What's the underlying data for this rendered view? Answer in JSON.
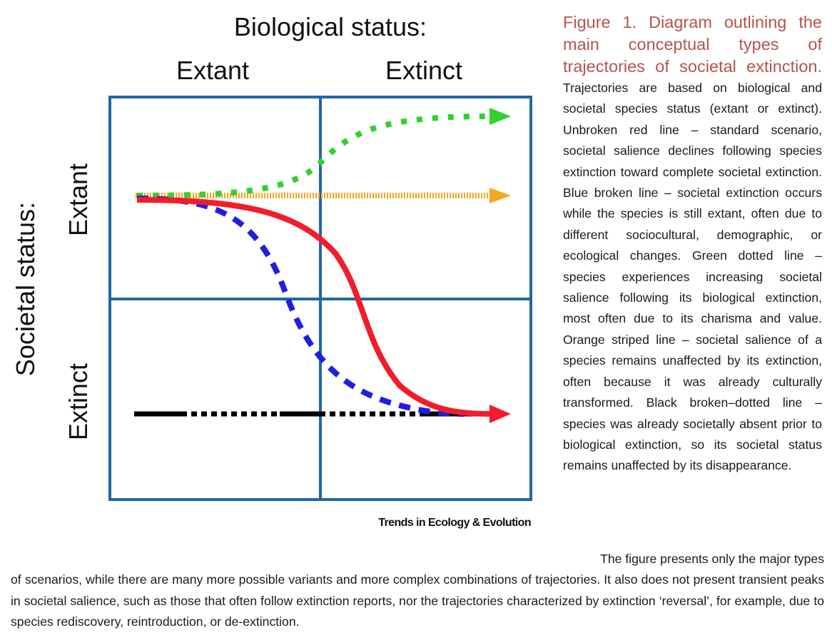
{
  "diagram": {
    "top_title": "Biological status:",
    "top_columns": [
      "Extant",
      "Extinct"
    ],
    "side_title": "Societal status:",
    "side_rows": [
      "Extant",
      "Extinct"
    ],
    "colors": {
      "grid": "#1f67a6",
      "red_line": "#f21c2a",
      "blue_line": "#1f1fe0",
      "green_line": "#2fd12f",
      "orange_line": "#f5a623",
      "black_line": "#000000"
    },
    "source": "Trends in Ecology & Evolution"
  },
  "caption": {
    "title": "Figure 1. Diagram outlining the main conceptual types of trajectories of societal extinction.",
    "body": "Trajectories are based on biological and societal species status (extant or extinct). Unbroken red line – standard scenario, societal salience declines following species extinction toward complete societal extinction. Blue broken line – societal extinction occurs while the species is still extant, often due to different sociocultural, demographic, or ecological changes. Green dotted line – species experiences increasing societal salience following its biological extinction, most often due to its charisma and value. Orange striped line – societal salience of a species remains unaffected by its extinction, often because it was already culturally transformed. Black broken–dotted line – species was already societally absent prior to biological extinction, so its societal status remains unaffected by its disappearance.",
    "continuation_lead": "The figure presents only the major types",
    "continuation": "of scenarios, while there are many more possible variants and more complex combinations of trajectories. It also does not present transient peaks in societal salience, such as those that often follow extinction reports, nor the trajectories characterized by extinction ‘reversal’, for example, due to species rediscovery, reintroduction, or de-extinction."
  }
}
